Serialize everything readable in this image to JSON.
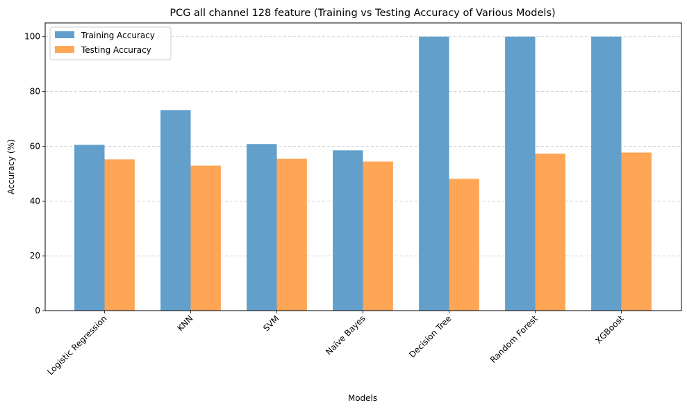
{
  "chart_data": {
    "type": "bar",
    "title": "PCG all channel 128 feature (Training vs Testing Accuracy of Various Models)",
    "xlabel": "Models",
    "ylabel": "Accuracy (%)",
    "ylim": [
      0,
      105
    ],
    "yticks": [
      0,
      20,
      40,
      60,
      80,
      100
    ],
    "grid": "y-dashed",
    "legend_position": "top-left",
    "categories": [
      "Logistic Regression",
      "KNN",
      "SVM",
      "Naïve Bayes",
      "Decision Tree",
      "Random Forest",
      "XGBoost"
    ],
    "series": [
      {
        "name": "Training Accuracy",
        "color": "#629fca",
        "values": [
          60.5,
          73.2,
          60.8,
          58.5,
          100,
          100,
          100
        ]
      },
      {
        "name": "Testing Accuracy",
        "color": "#ffa556",
        "values": [
          55.2,
          52.9,
          55.4,
          54.4,
          48.1,
          57.3,
          57.7
        ]
      }
    ]
  }
}
